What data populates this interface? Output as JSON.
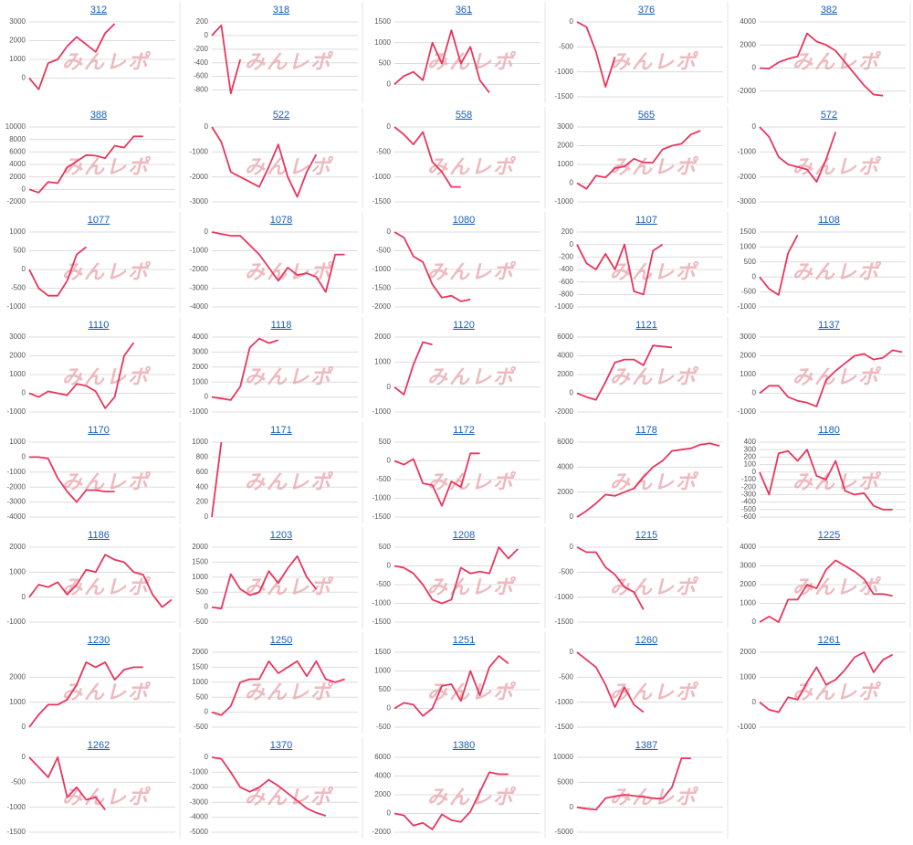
{
  "watermark": "みんレポ",
  "chart_data": [
    {
      "type": "line",
      "title": "312",
      "color": "#e8365d",
      "grid": true,
      "ylim": [
        -1000,
        3000
      ],
      "yticks": [
        0,
        1000,
        2000,
        3000
      ],
      "values": [
        0,
        -600,
        800,
        1000,
        1700,
        2200,
        1800,
        1400,
        2400,
        2900
      ]
    },
    {
      "type": "line",
      "title": "318",
      "color": "#e8365d",
      "grid": true,
      "ylim": [
        -900,
        200
      ],
      "yticks": [
        -800,
        -600,
        -400,
        -200,
        0,
        200
      ],
      "values": [
        0,
        150,
        -850,
        -350
      ]
    },
    {
      "type": "line",
      "title": "361",
      "color": "#e8365d",
      "grid": true,
      "ylim": [
        -300,
        1500
      ],
      "yticks": [
        0,
        500,
        1000,
        1500
      ],
      "values": [
        0,
        200,
        300,
        100,
        1000,
        500,
        1300,
        500,
        900,
        100,
        -200
      ]
    },
    {
      "type": "line",
      "title": "376",
      "color": "#e8365d",
      "grid": true,
      "ylim": [
        -1500,
        0
      ],
      "yticks": [
        -1500,
        -1000,
        -500,
        0
      ],
      "values": [
        0,
        -100,
        -600,
        -1300,
        -700
      ]
    },
    {
      "type": "line",
      "title": "382",
      "color": "#e8365d",
      "grid": true,
      "ylim": [
        -2500,
        4000
      ],
      "yticks": [
        -2000,
        0,
        2000,
        4000
      ],
      "values": [
        0,
        -50,
        500,
        800,
        1000,
        3000,
        2300,
        2000,
        1500,
        500,
        -500,
        -1500,
        -2300,
        -2400
      ]
    },
    {
      "type": "line",
      "title": "388",
      "color": "#e8365d",
      "grid": true,
      "ylim": [
        -2000,
        10000
      ],
      "yticks": [
        -2000,
        0,
        2000,
        4000,
        6000,
        8000,
        10000
      ],
      "values": [
        0,
        -500,
        1200,
        1000,
        3500,
        4500,
        5500,
        5400,
        5000,
        7000,
        6700,
        8500,
        8500
      ]
    },
    {
      "type": "line",
      "title": "522",
      "color": "#e8365d",
      "grid": true,
      "ylim": [
        -3000,
        0
      ],
      "yticks": [
        -3000,
        -2000,
        -1000,
        0
      ],
      "values": [
        0,
        -600,
        -1800,
        -2000,
        -2200,
        -2400,
        -1600,
        -700,
        -2000,
        -2800,
        -1800,
        -1100
      ]
    },
    {
      "type": "line",
      "title": "558",
      "color": "#e8365d",
      "grid": true,
      "ylim": [
        -1500,
        0
      ],
      "yticks": [
        -1500,
        -1000,
        -500,
        0
      ],
      "values": [
        0,
        -150,
        -350,
        -100,
        -700,
        -900,
        -1200,
        -1200
      ]
    },
    {
      "type": "line",
      "title": "565",
      "color": "#e8365d",
      "grid": true,
      "ylim": [
        -1000,
        3000
      ],
      "yticks": [
        -1000,
        0,
        1000,
        2000,
        3000
      ],
      "values": [
        0,
        -300,
        400,
        300,
        800,
        900,
        1300,
        1100,
        1100,
        1800,
        2000,
        2100,
        2600,
        2800
      ]
    },
    {
      "type": "line",
      "title": "572",
      "color": "#e8365d",
      "grid": true,
      "ylim": [
        -3000,
        0
      ],
      "yticks": [
        -3000,
        -2000,
        -1000,
        0
      ],
      "values": [
        0,
        -400,
        -1200,
        -1500,
        -1600,
        -1700,
        -2200,
        -1300,
        -200
      ]
    },
    {
      "type": "line",
      "title": "1077",
      "color": "#e8365d",
      "grid": true,
      "ylim": [
        -1000,
        1000
      ],
      "yticks": [
        -1000,
        -500,
        0,
        500,
        1000
      ],
      "values": [
        0,
        -500,
        -700,
        -700,
        -300,
        400,
        600
      ]
    },
    {
      "type": "line",
      "title": "1078",
      "color": "#e8365d",
      "grid": true,
      "ylim": [
        -4000,
        0
      ],
      "yticks": [
        -4000,
        -3000,
        -2000,
        -1000,
        0
      ],
      "values": [
        0,
        -100,
        -200,
        -200,
        -700,
        -1200,
        -1900,
        -2600,
        -1900,
        -2300,
        -2200,
        -2400,
        -3200,
        -1200,
        -1200
      ]
    },
    {
      "type": "line",
      "title": "1080",
      "color": "#e8365d",
      "grid": true,
      "ylim": [
        -2000,
        0
      ],
      "yticks": [
        -2000,
        -1500,
        -1000,
        -500,
        0
      ],
      "values": [
        0,
        -150,
        -650,
        -800,
        -1400,
        -1750,
        -1700,
        -1850,
        -1800
      ]
    },
    {
      "type": "line",
      "title": "1107",
      "color": "#e8365d",
      "grid": true,
      "ylim": [
        -1000,
        200
      ],
      "yticks": [
        -1000,
        -800,
        -600,
        -400,
        -200,
        0,
        200
      ],
      "values": [
        0,
        -300,
        -400,
        -150,
        -400,
        0,
        -750,
        -800,
        -100,
        0
      ]
    },
    {
      "type": "line",
      "title": "1108",
      "color": "#e8365d",
      "grid": true,
      "ylim": [
        -1000,
        1500
      ],
      "yticks": [
        -1000,
        -500,
        0,
        500,
        1000,
        1500
      ],
      "values": [
        0,
        -400,
        -600,
        800,
        1400
      ]
    },
    {
      "type": "line",
      "title": "1110",
      "color": "#e8365d",
      "grid": true,
      "ylim": [
        -1000,
        3000
      ],
      "yticks": [
        -1000,
        0,
        1000,
        2000,
        3000
      ],
      "values": [
        0,
        -200,
        100,
        0,
        -100,
        500,
        400,
        100,
        -800,
        -200,
        2000,
        2700
      ]
    },
    {
      "type": "line",
      "title": "1118",
      "color": "#e8365d",
      "grid": true,
      "ylim": [
        -1000,
        4000
      ],
      "yticks": [
        -1000,
        0,
        1000,
        2000,
        3000,
        4000
      ],
      "values": [
        0,
        -100,
        -200,
        700,
        3300,
        3900,
        3600,
        3800
      ]
    },
    {
      "type": "line",
      "title": "1120",
      "color": "#e8365d",
      "grid": true,
      "ylim": [
        -1000,
        2000
      ],
      "yticks": [
        -1000,
        0,
        1000,
        2000
      ],
      "values": [
        0,
        -300,
        900,
        1800,
        1700
      ]
    },
    {
      "type": "line",
      "title": "1121",
      "color": "#e8365d",
      "grid": true,
      "ylim": [
        -2000,
        6000
      ],
      "yticks": [
        -2000,
        0,
        2000,
        4000,
        6000
      ],
      "values": [
        0,
        -400,
        -700,
        1200,
        3300,
        3600,
        3600,
        3000,
        5100,
        5000,
        4900
      ]
    },
    {
      "type": "line",
      "title": "1137",
      "color": "#e8365d",
      "grid": true,
      "ylim": [
        -1000,
        3000
      ],
      "yticks": [
        -1000,
        0,
        1000,
        2000,
        3000
      ],
      "values": [
        0,
        400,
        400,
        -200,
        -400,
        -500,
        -700,
        700,
        1200,
        1600,
        2000,
        2100,
        1800,
        1900,
        2300,
        2200
      ]
    },
    {
      "type": "line",
      "title": "1170",
      "color": "#e8365d",
      "grid": true,
      "ylim": [
        -4000,
        1000
      ],
      "yticks": [
        -4000,
        -3000,
        -2000,
        -1000,
        0,
        1000
      ],
      "values": [
        0,
        0,
        -100,
        -1400,
        -2300,
        -3000,
        -2200,
        -2200,
        -2300,
        -2300
      ]
    },
    {
      "type": "line",
      "title": "1171",
      "color": "#e8365d",
      "grid": true,
      "ylim": [
        0,
        1000
      ],
      "yticks": [
        0,
        200,
        400,
        600,
        800,
        1000
      ],
      "values": [
        0,
        1000
      ]
    },
    {
      "type": "line",
      "title": "1172",
      "color": "#e8365d",
      "grid": true,
      "ylim": [
        -1500,
        500
      ],
      "yticks": [
        -1500,
        -1000,
        -500,
        0,
        500
      ],
      "values": [
        0,
        -100,
        50,
        -600,
        -650,
        -1200,
        -550,
        -700,
        200,
        200
      ]
    },
    {
      "type": "line",
      "title": "1178",
      "color": "#e8365d",
      "grid": true,
      "ylim": [
        0,
        6000
      ],
      "yticks": [
        0,
        2000,
        4000,
        6000
      ],
      "values": [
        0,
        500,
        1100,
        1800,
        1700,
        2000,
        2300,
        3200,
        4000,
        4500,
        5300,
        5400,
        5500,
        5800,
        5900,
        5700
      ]
    },
    {
      "type": "line",
      "title": "1180",
      "color": "#e8365d",
      "grid": true,
      "ylim": [
        -600,
        400
      ],
      "yticks": [
        -600,
        -500,
        -400,
        -300,
        -200,
        -100,
        0,
        100,
        200,
        300,
        400
      ],
      "values": [
        0,
        -300,
        250,
        280,
        150,
        300,
        -50,
        -100,
        150,
        -250,
        -300,
        -280,
        -450,
        -500,
        -500
      ]
    },
    {
      "type": "line",
      "title": "1186",
      "color": "#e8365d",
      "grid": true,
      "ylim": [
        -1000,
        2000
      ],
      "yticks": [
        -1000,
        0,
        1000,
        2000
      ],
      "values": [
        0,
        500,
        400,
        600,
        100,
        500,
        1100,
        1000,
        1700,
        1500,
        1400,
        1000,
        900,
        100,
        -400,
        -100
      ]
    },
    {
      "type": "line",
      "title": "1203",
      "color": "#e8365d",
      "grid": true,
      "ylim": [
        -500,
        2000
      ],
      "yticks": [
        -500,
        0,
        500,
        1000,
        1500,
        2000
      ],
      "values": [
        0,
        -50,
        1100,
        600,
        400,
        500,
        1200,
        800,
        1300,
        1700,
        1000,
        600
      ]
    },
    {
      "type": "line",
      "title": "1208",
      "color": "#e8365d",
      "grid": true,
      "ylim": [
        -1500,
        500
      ],
      "yticks": [
        -1500,
        -1000,
        -500,
        0,
        500
      ],
      "values": [
        0,
        -50,
        -200,
        -500,
        -900,
        -1000,
        -900,
        -50,
        -200,
        -150,
        -200,
        500,
        200,
        450
      ]
    },
    {
      "type": "line",
      "title": "1215",
      "color": "#e8365d",
      "grid": true,
      "ylim": [
        -1500,
        0
      ],
      "yticks": [
        -1500,
        -1000,
        -500,
        0
      ],
      "values": [
        0,
        -100,
        -100,
        -400,
        -550,
        -800,
        -900,
        -1250
      ]
    },
    {
      "type": "line",
      "title": "1225",
      "color": "#e8365d",
      "grid": true,
      "ylim": [
        0,
        4000
      ],
      "yticks": [
        0,
        1000,
        2000,
        3000,
        4000
      ],
      "values": [
        0,
        300,
        0,
        1200,
        1200,
        2000,
        1800,
        2800,
        3300,
        3000,
        2700,
        2300,
        1500,
        1500,
        1400
      ]
    },
    {
      "type": "line",
      "title": "1230",
      "color": "#e8365d",
      "grid": true,
      "ylim": [
        0,
        3000
      ],
      "yticks": [
        0,
        1000,
        2000
      ],
      "values": [
        0,
        500,
        900,
        900,
        1100,
        1700,
        2600,
        2400,
        2600,
        1900,
        2300,
        2400,
        2400
      ]
    },
    {
      "type": "line",
      "title": "1250",
      "color": "#e8365d",
      "grid": true,
      "ylim": [
        -500,
        2000
      ],
      "yticks": [
        -500,
        0,
        500,
        1000,
        1500,
        2000
      ],
      "values": [
        0,
        -100,
        200,
        1000,
        1100,
        1100,
        1700,
        1300,
        1500,
        1700,
        1200,
        1700,
        1100,
        1000,
        1100
      ]
    },
    {
      "type": "line",
      "title": "1251",
      "color": "#e8365d",
      "grid": true,
      "ylim": [
        -500,
        1500
      ],
      "yticks": [
        -500,
        0,
        500,
        1000,
        1500
      ],
      "values": [
        0,
        150,
        100,
        -200,
        0,
        600,
        650,
        200,
        1000,
        350,
        1100,
        1400,
        1200
      ]
    },
    {
      "type": "line",
      "title": "1260",
      "color": "#e8365d",
      "grid": true,
      "ylim": [
        -1500,
        0
      ],
      "yticks": [
        -1500,
        -1000,
        -500,
        0
      ],
      "values": [
        0,
        -150,
        -300,
        -650,
        -1100,
        -700,
        -1050,
        -1200
      ]
    },
    {
      "type": "line",
      "title": "1261",
      "color": "#e8365d",
      "grid": true,
      "ylim": [
        -1000,
        2000
      ],
      "yticks": [
        -1000,
        0,
        1000,
        2000
      ],
      "values": [
        0,
        -300,
        -400,
        200,
        100,
        800,
        1400,
        700,
        900,
        1300,
        1800,
        2000,
        1200,
        1700,
        1900
      ]
    },
    {
      "type": "line",
      "title": "1262",
      "color": "#e8365d",
      "grid": true,
      "ylim": [
        -1500,
        0
      ],
      "yticks": [
        -1500,
        -1000,
        -500,
        0
      ],
      "values": [
        0,
        -200,
        -400,
        0,
        -800,
        -600,
        -850,
        -800,
        -1050
      ]
    },
    {
      "type": "line",
      "title": "1370",
      "color": "#e8365d",
      "grid": true,
      "ylim": [
        -5000,
        0
      ],
      "yticks": [
        -5000,
        -4000,
        -3000,
        -2000,
        -1000,
        0
      ],
      "values": [
        0,
        -100,
        -1000,
        -2000,
        -2300,
        -2000,
        -1500,
        -1900,
        -2400,
        -2900,
        -3400,
        -3700,
        -3900
      ]
    },
    {
      "type": "line",
      "title": "1380",
      "color": "#e8365d",
      "grid": true,
      "ylim": [
        -2000,
        6000
      ],
      "yticks": [
        -2000,
        0,
        2000,
        4000,
        6000
      ],
      "values": [
        0,
        -200,
        -1300,
        -1000,
        -1700,
        -100,
        -700,
        -900,
        200,
        2300,
        4400,
        4200,
        4200
      ]
    },
    {
      "type": "line",
      "title": "1387",
      "color": "#e8365d",
      "grid": true,
      "ylim": [
        -5000,
        10000
      ],
      "yticks": [
        -5000,
        0,
        5000,
        10000
      ],
      "values": [
        0,
        -300,
        -500,
        1800,
        2200,
        2500,
        2300,
        2100,
        1800,
        1700,
        4000,
        9800,
        9800
      ]
    }
  ]
}
